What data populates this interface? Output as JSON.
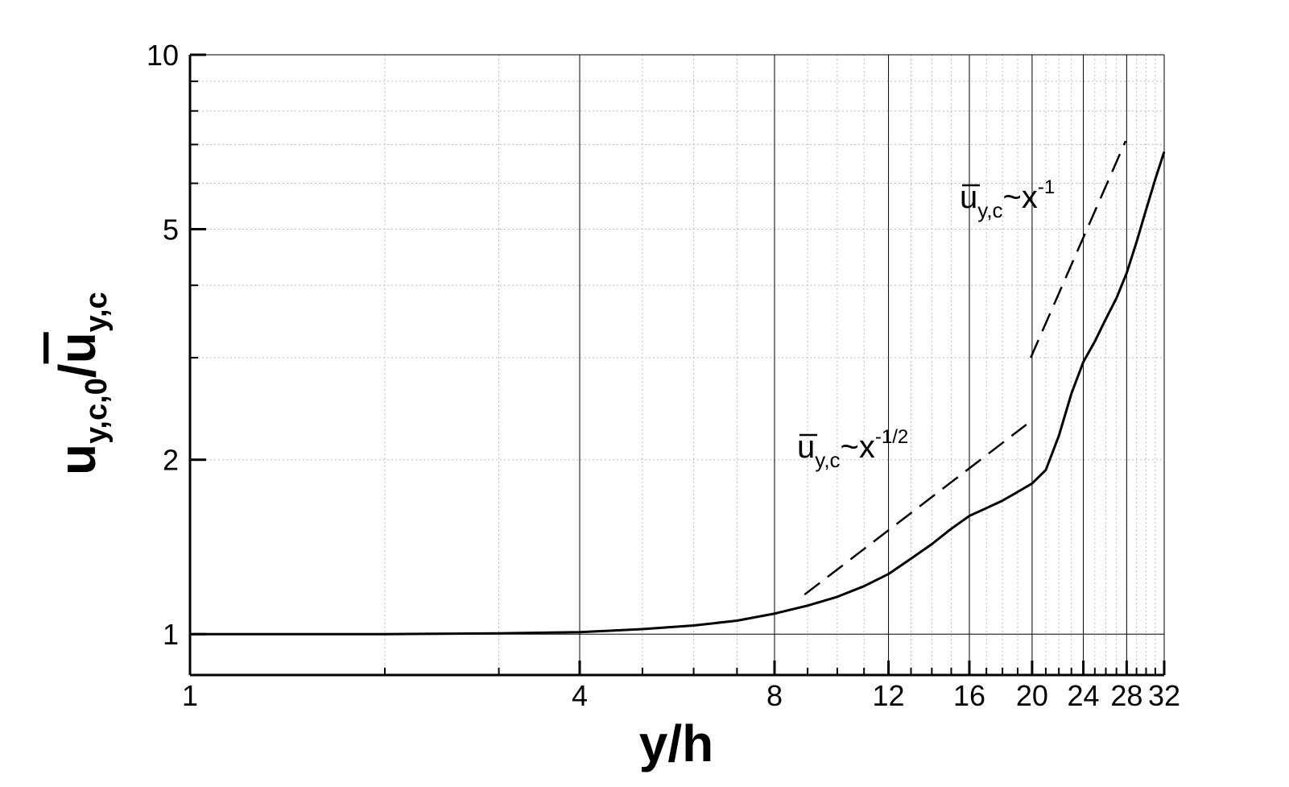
{
  "chart_data": {
    "type": "line",
    "x_scale": "log",
    "y_scale": "log",
    "xlim": [
      1,
      32
    ],
    "ylim": [
      0.85,
      10
    ],
    "xlabel": "y/h",
    "ylabel": {
      "main": "u",
      "sub_main": "y,c,0",
      "slash": "/",
      "over": "u",
      "sub_over": "y,c"
    },
    "x_ticks": [
      1,
      4,
      8,
      12,
      16,
      20,
      24,
      28,
      32
    ],
    "x_tick_labels": [
      "1",
      "4",
      "8",
      "12",
      "16",
      "20",
      "24",
      "28",
      "32"
    ],
    "y_ticks": [
      1,
      2,
      5,
      10
    ],
    "y_tick_labels": [
      "1",
      "2",
      "5",
      "10"
    ],
    "grid": true,
    "series": [
      {
        "style": "solid",
        "color": "#000000",
        "x": [
          1,
          2,
          3,
          4,
          5,
          6,
          7,
          8,
          9,
          10,
          11,
          12,
          13,
          14,
          15,
          16,
          17,
          18,
          19,
          20,
          21,
          22,
          23,
          24,
          25,
          26,
          27,
          28,
          29,
          30,
          31,
          32
        ],
        "y": [
          1.0,
          1.0,
          1.003,
          1.008,
          1.02,
          1.035,
          1.055,
          1.085,
          1.12,
          1.16,
          1.21,
          1.27,
          1.35,
          1.43,
          1.52,
          1.6,
          1.65,
          1.7,
          1.76,
          1.82,
          1.92,
          2.2,
          2.6,
          2.95,
          3.2,
          3.5,
          3.8,
          4.2,
          4.75,
          5.4,
          6.1,
          6.8
        ]
      },
      {
        "style": "dashed",
        "color": "#000000",
        "x": [
          8.9,
          19.6
        ],
        "y": [
          1.17,
          2.3
        ]
      },
      {
        "style": "dashed",
        "color": "#000000",
        "x": [
          19.9,
          27.9
        ],
        "y": [
          3.0,
          7.1
        ]
      }
    ],
    "annotations": [
      {
        "base": "u",
        "sub": "y,c",
        "op": "~x",
        "sup": "-1/2"
      },
      {
        "base": "u",
        "sub": "y,c",
        "op": "~x",
        "sup": "-1"
      }
    ]
  }
}
